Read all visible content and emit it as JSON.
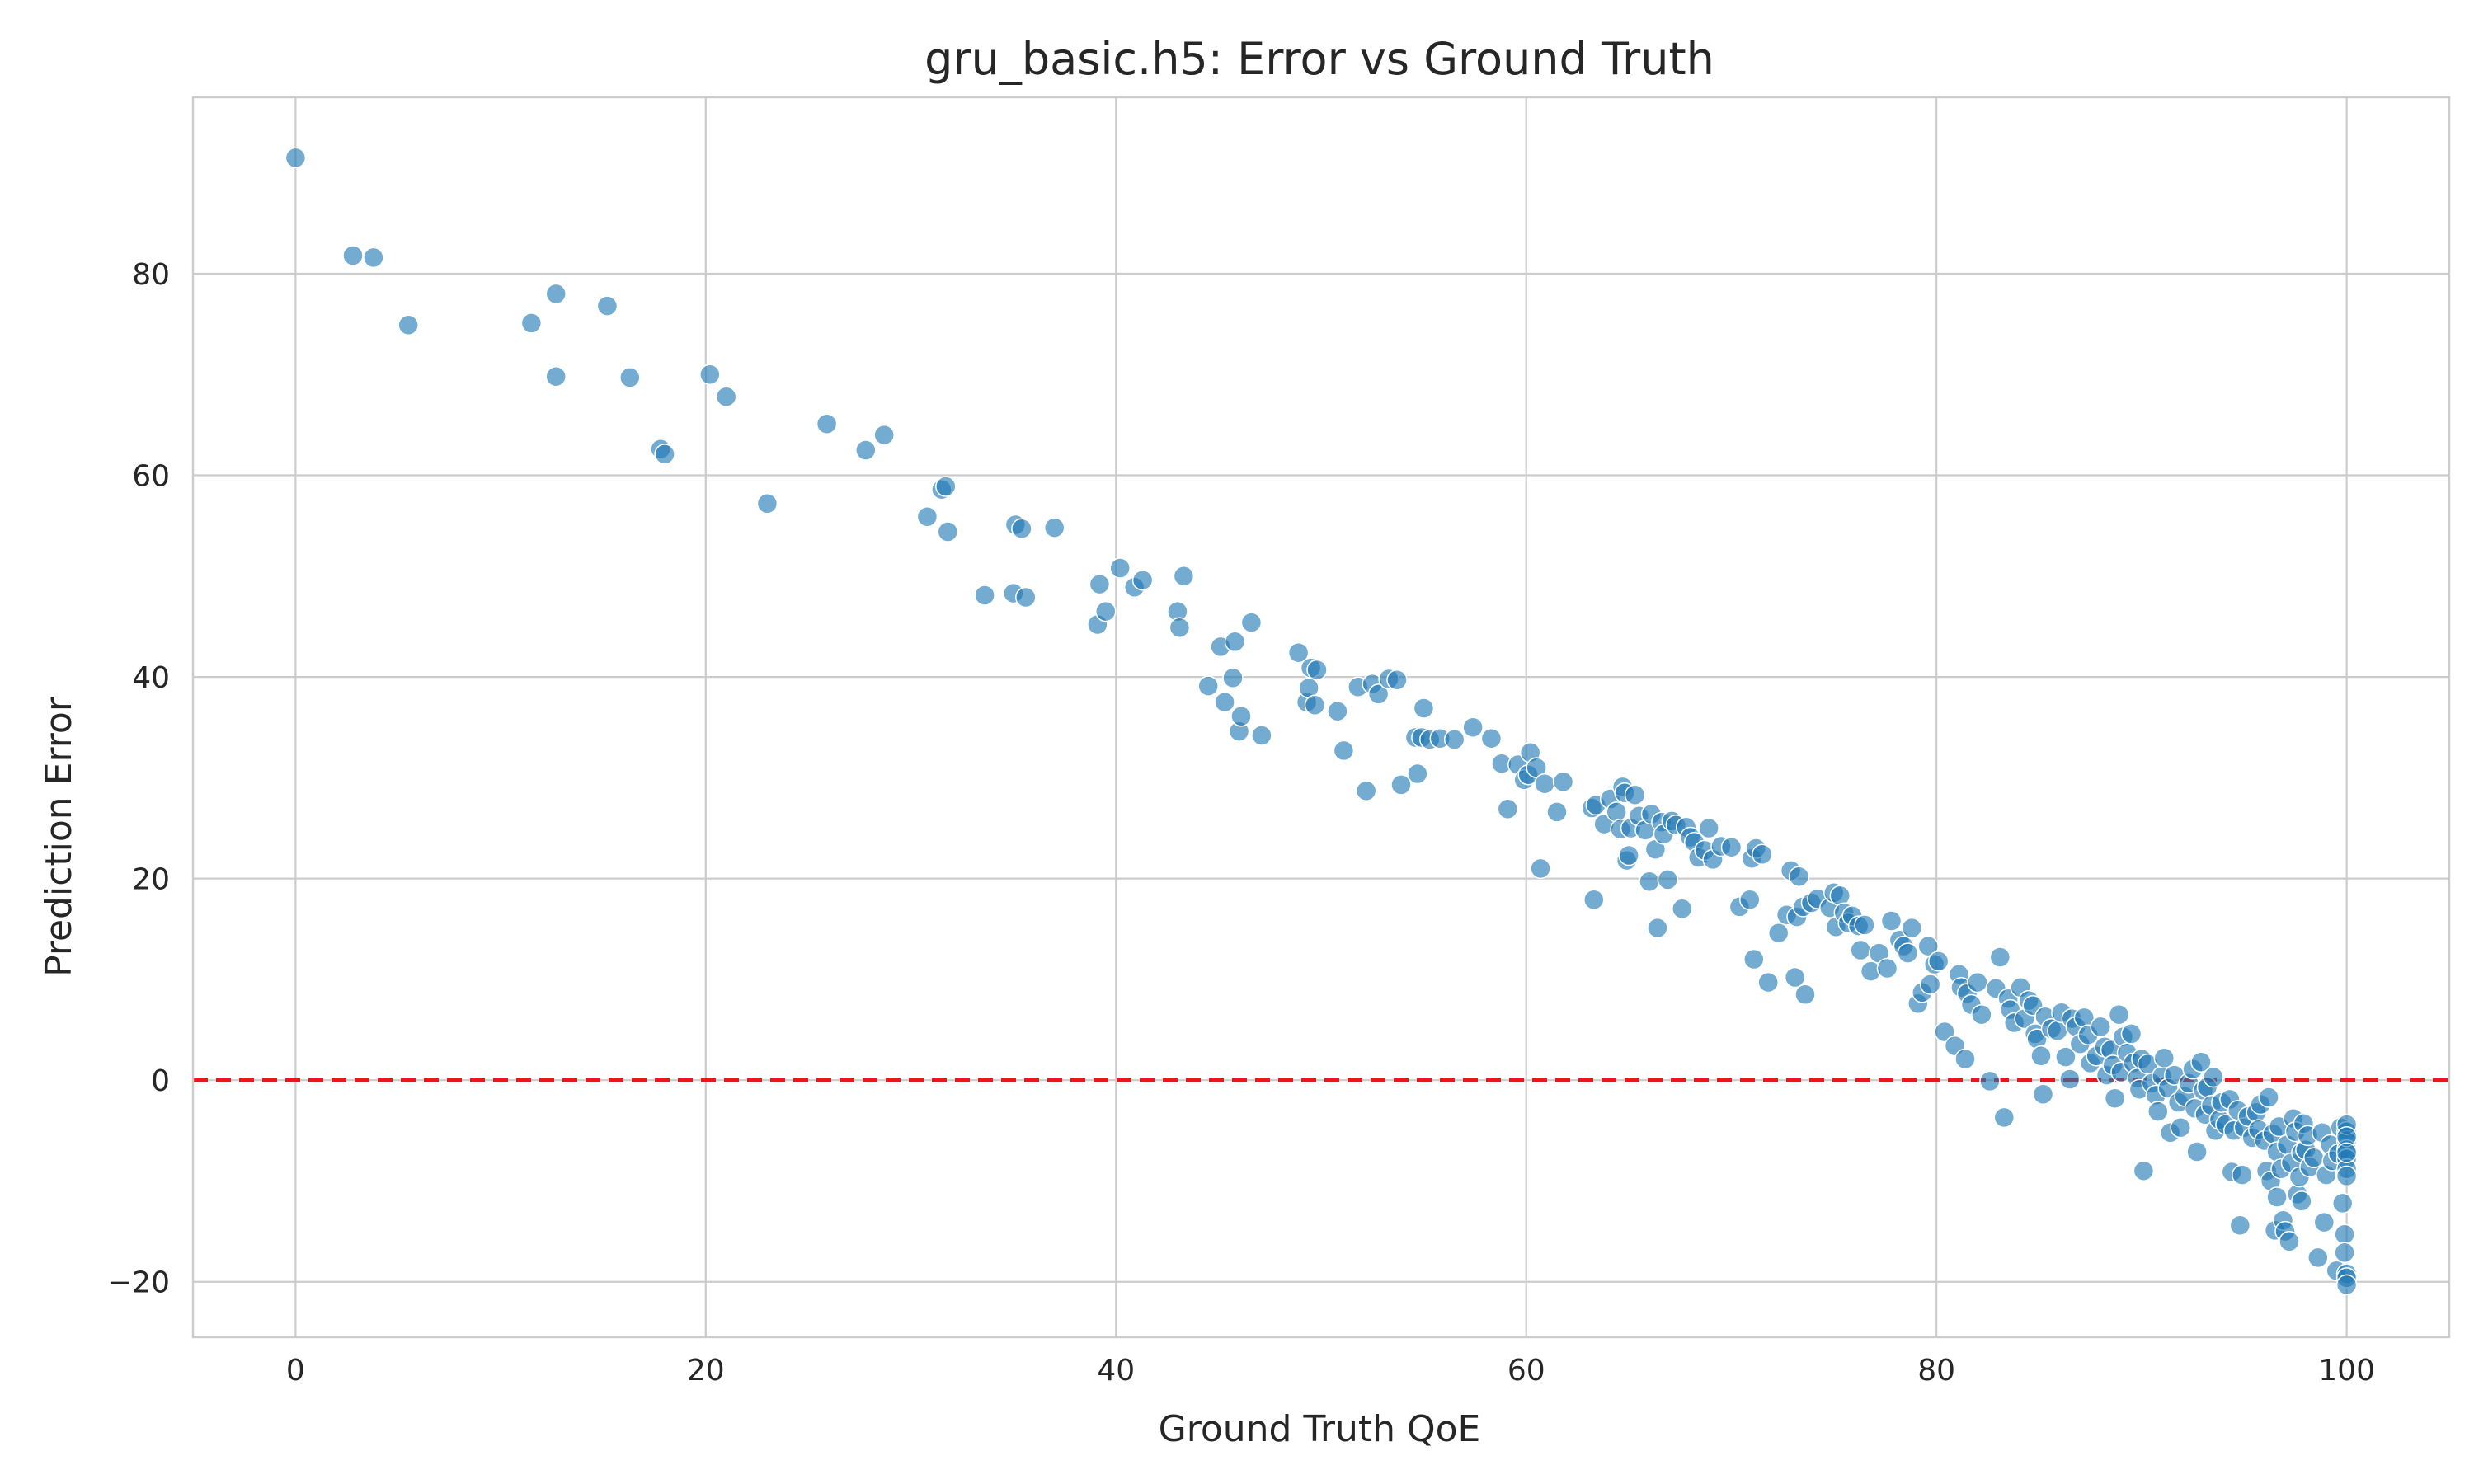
{
  "chart_data": {
    "type": "scatter",
    "title": "gru_basic.h5: Error vs Ground Truth",
    "xlabel": "Ground Truth QoE",
    "ylabel": "Prediction Error",
    "xlim": [
      -5,
      105
    ],
    "ylim": [
      -25.5,
      97.5
    ],
    "xticks": [
      0,
      20,
      40,
      60,
      80,
      100
    ],
    "xtick_labels": [
      "0",
      "20",
      "40",
      "60",
      "80",
      "100"
    ],
    "yticks": [
      -20,
      0,
      20,
      40,
      60,
      80
    ],
    "ytick_labels": [
      "−20",
      "0",
      "20",
      "40",
      "60",
      "80"
    ],
    "grid": true,
    "reference_line": {
      "y": 0,
      "color": "#e8181a",
      "style": "dashed"
    },
    "point_color": "#1f77b4",
    "points": [
      [
        0.0,
        91.5
      ],
      [
        2.8,
        81.8
      ],
      [
        3.8,
        81.6
      ],
      [
        5.5,
        74.9
      ],
      [
        11.5,
        75.1
      ],
      [
        12.7,
        78.0
      ],
      [
        12.7,
        69.8
      ],
      [
        15.2,
        76.8
      ],
      [
        16.3,
        69.7
      ],
      [
        17.8,
        62.6
      ],
      [
        18.0,
        62.1
      ],
      [
        20.2,
        70.0
      ],
      [
        21.0,
        67.8
      ],
      [
        23.0,
        57.2
      ],
      [
        25.9,
        65.1
      ],
      [
        27.8,
        62.5
      ],
      [
        28.7,
        64.0
      ],
      [
        30.8,
        55.9
      ],
      [
        31.5,
        58.6
      ],
      [
        31.7,
        58.9
      ],
      [
        31.8,
        54.4
      ],
      [
        33.6,
        48.1
      ],
      [
        35.0,
        48.3
      ],
      [
        35.1,
        55.1
      ],
      [
        35.4,
        54.7
      ],
      [
        35.6,
        47.9
      ],
      [
        37.0,
        54.8
      ],
      [
        39.1,
        45.2
      ],
      [
        39.2,
        49.2
      ],
      [
        39.5,
        46.5
      ],
      [
        40.2,
        50.8
      ],
      [
        40.9,
        48.9
      ],
      [
        41.3,
        49.6
      ],
      [
        43.0,
        46.5
      ],
      [
        43.1,
        44.9
      ],
      [
        43.3,
        50.0
      ],
      [
        44.5,
        39.1
      ],
      [
        45.1,
        43.0
      ],
      [
        45.3,
        37.5
      ],
      [
        45.7,
        39.9
      ],
      [
        45.8,
        43.5
      ],
      [
        46.0,
        34.6
      ],
      [
        46.1,
        36.1
      ],
      [
        46.6,
        45.4
      ],
      [
        47.1,
        34.2
      ],
      [
        48.9,
        42.4
      ],
      [
        49.3,
        37.5
      ],
      [
        49.4,
        38.9
      ],
      [
        49.5,
        40.9
      ],
      [
        49.7,
        37.2
      ],
      [
        49.8,
        40.7
      ],
      [
        50.8,
        36.6
      ],
      [
        51.1,
        32.7
      ],
      [
        51.8,
        39.0
      ],
      [
        52.2,
        28.7
      ],
      [
        52.5,
        39.3
      ],
      [
        52.8,
        38.3
      ],
      [
        53.3,
        39.8
      ],
      [
        53.7,
        39.7
      ],
      [
        53.9,
        29.3
      ],
      [
        54.6,
        34.0
      ],
      [
        54.7,
        30.4
      ],
      [
        54.9,
        34.0
      ],
      [
        55.0,
        36.9
      ],
      [
        55.3,
        33.8
      ],
      [
        55.8,
        33.9
      ],
      [
        56.5,
        33.8
      ],
      [
        57.4,
        35.0
      ],
      [
        58.3,
        33.9
      ],
      [
        58.8,
        31.4
      ],
      [
        59.1,
        26.9
      ],
      [
        59.6,
        31.3
      ],
      [
        59.9,
        29.8
      ],
      [
        60.1,
        30.3
      ],
      [
        60.2,
        32.5
      ],
      [
        60.5,
        31.0
      ],
      [
        60.7,
        21.0
      ],
      [
        60.9,
        29.4
      ],
      [
        61.5,
        26.6
      ],
      [
        61.8,
        29.6
      ],
      [
        63.2,
        27.0
      ],
      [
        63.3,
        17.9
      ],
      [
        63.4,
        27.3
      ],
      [
        63.8,
        25.4
      ],
      [
        64.1,
        27.9
      ],
      [
        64.4,
        26.6
      ],
      [
        64.6,
        24.9
      ],
      [
        64.7,
        29.1
      ],
      [
        64.8,
        28.5
      ],
      [
        64.9,
        21.8
      ],
      [
        65.0,
        22.3
      ],
      [
        65.1,
        25.0
      ],
      [
        65.3,
        28.3
      ],
      [
        65.5,
        26.2
      ],
      [
        65.8,
        24.8
      ],
      [
        66.0,
        19.7
      ],
      [
        66.1,
        26.4
      ],
      [
        66.3,
        22.9
      ],
      [
        66.4,
        15.1
      ],
      [
        66.6,
        25.6
      ],
      [
        66.7,
        24.4
      ],
      [
        66.9,
        19.9
      ],
      [
        67.1,
        25.7
      ],
      [
        67.3,
        25.3
      ],
      [
        67.6,
        17.0
      ],
      [
        67.8,
        25.1
      ],
      [
        68.0,
        24.1
      ],
      [
        68.2,
        23.6
      ],
      [
        68.4,
        22.1
      ],
      [
        68.7,
        22.8
      ],
      [
        68.9,
        25.0
      ],
      [
        69.1,
        21.9
      ],
      [
        69.5,
        23.2
      ],
      [
        70.0,
        23.1
      ],
      [
        70.4,
        17.2
      ],
      [
        70.9,
        17.9
      ],
      [
        71.0,
        22.0
      ],
      [
        71.1,
        12.0
      ],
      [
        71.2,
        23.0
      ],
      [
        71.5,
        22.4
      ],
      [
        71.8,
        9.7
      ],
      [
        72.3,
        14.6
      ],
      [
        72.7,
        16.4
      ],
      [
        72.9,
        20.8
      ],
      [
        73.1,
        10.2
      ],
      [
        73.2,
        16.2
      ],
      [
        73.3,
        20.2
      ],
      [
        73.5,
        17.2
      ],
      [
        73.6,
        8.5
      ],
      [
        73.9,
        17.6
      ],
      [
        74.2,
        18.0
      ],
      [
        74.8,
        17.1
      ],
      [
        75.0,
        18.6
      ],
      [
        75.1,
        15.2
      ],
      [
        75.3,
        18.3
      ],
      [
        75.5,
        16.6
      ],
      [
        75.7,
        15.6
      ],
      [
        75.9,
        16.3
      ],
      [
        76.2,
        15.3
      ],
      [
        76.3,
        12.9
      ],
      [
        76.5,
        15.4
      ],
      [
        76.8,
        10.8
      ],
      [
        77.2,
        12.6
      ],
      [
        77.6,
        11.1
      ],
      [
        77.8,
        15.8
      ],
      [
        78.2,
        13.9
      ],
      [
        78.4,
        13.3
      ],
      [
        78.6,
        12.6
      ],
      [
        78.8,
        15.1
      ],
      [
        79.1,
        7.6
      ],
      [
        79.3,
        8.7
      ],
      [
        79.6,
        13.3
      ],
      [
        79.7,
        9.5
      ],
      [
        79.9,
        11.5
      ],
      [
        80.1,
        11.8
      ],
      [
        80.4,
        4.8
      ],
      [
        80.9,
        3.4
      ],
      [
        81.1,
        10.5
      ],
      [
        81.2,
        9.2
      ],
      [
        81.4,
        2.1
      ],
      [
        81.5,
        8.6
      ],
      [
        81.7,
        7.5
      ],
      [
        82.0,
        9.7
      ],
      [
        82.2,
        6.5
      ],
      [
        82.6,
        -0.1
      ],
      [
        82.9,
        9.1
      ],
      [
        83.1,
        12.2
      ],
      [
        83.3,
        -3.7
      ],
      [
        83.5,
        8.1
      ],
      [
        83.6,
        7.0
      ],
      [
        83.8,
        5.7
      ],
      [
        84.1,
        9.2
      ],
      [
        84.3,
        6.1
      ],
      [
        84.5,
        7.9
      ],
      [
        84.7,
        7.4
      ],
      [
        84.8,
        4.6
      ],
      [
        84.9,
        4.1
      ],
      [
        85.1,
        2.4
      ],
      [
        85.2,
        -1.4
      ],
      [
        85.3,
        6.3
      ],
      [
        85.6,
        5.1
      ],
      [
        85.9,
        4.9
      ],
      [
        86.1,
        6.7
      ],
      [
        86.3,
        2.3
      ],
      [
        86.5,
        0.1
      ],
      [
        86.6,
        6.1
      ],
      [
        86.8,
        5.3
      ],
      [
        87.0,
        3.6
      ],
      [
        87.2,
        6.2
      ],
      [
        87.4,
        4.5
      ],
      [
        87.5,
        1.7
      ],
      [
        87.8,
        2.4
      ],
      [
        88.0,
        5.3
      ],
      [
        88.2,
        3.3
      ],
      [
        88.3,
        0.5
      ],
      [
        88.5,
        3.0
      ],
      [
        88.6,
        1.5
      ],
      [
        88.7,
        -1.8
      ],
      [
        88.9,
        6.5
      ],
      [
        89.0,
        0.8
      ],
      [
        89.1,
        4.3
      ],
      [
        89.3,
        2.7
      ],
      [
        89.5,
        4.6
      ],
      [
        89.6,
        1.7
      ],
      [
        89.8,
        0.2
      ],
      [
        89.9,
        -0.9
      ],
      [
        90.0,
        2.1
      ],
      [
        90.1,
        -9.0
      ],
      [
        90.3,
        1.6
      ],
      [
        90.5,
        -0.3
      ],
      [
        90.7,
        -1.5
      ],
      [
        90.8,
        -3.1
      ],
      [
        91.0,
        0.4
      ],
      [
        91.1,
        2.2
      ],
      [
        91.3,
        -0.8
      ],
      [
        91.4,
        -5.2
      ],
      [
        91.6,
        0.5
      ],
      [
        91.8,
        -2.2
      ],
      [
        91.9,
        -4.7
      ],
      [
        92.1,
        -1.6
      ],
      [
        92.3,
        -0.3
      ],
      [
        92.5,
        1.1
      ],
      [
        92.6,
        -2.8
      ],
      [
        92.7,
        -7.1
      ],
      [
        92.9,
        1.8
      ],
      [
        93.0,
        -1.0
      ],
      [
        93.1,
        -3.4
      ],
      [
        93.2,
        -0.7
      ],
      [
        93.4,
        -2.5
      ],
      [
        93.5,
        0.3
      ],
      [
        93.6,
        -5.0
      ],
      [
        93.8,
        -3.9
      ],
      [
        93.9,
        -2.2
      ],
      [
        94.1,
        -4.4
      ],
      [
        94.3,
        -1.9
      ],
      [
        94.4,
        -9.1
      ],
      [
        94.5,
        -5.0
      ],
      [
        94.7,
        -3.0
      ],
      [
        94.8,
        -14.4
      ],
      [
        94.9,
        -9.4
      ],
      [
        95.0,
        -4.7
      ],
      [
        95.2,
        -3.6
      ],
      [
        95.4,
        -5.7
      ],
      [
        95.6,
        -3.2
      ],
      [
        95.7,
        -4.9
      ],
      [
        95.8,
        -2.4
      ],
      [
        96.0,
        -6.0
      ],
      [
        96.1,
        -9.0
      ],
      [
        96.2,
        -1.7
      ],
      [
        96.3,
        -10.0
      ],
      [
        96.4,
        -5.3
      ],
      [
        96.5,
        -14.9
      ],
      [
        96.6,
        -7.1
      ],
      [
        96.6,
        -11.6
      ],
      [
        96.7,
        -4.6
      ],
      [
        96.8,
        -8.8
      ],
      [
        96.9,
        -13.9
      ],
      [
        97.0,
        -15.0
      ],
      [
        97.1,
        -6.4
      ],
      [
        97.2,
        -16.0
      ],
      [
        97.3,
        -8.2
      ],
      [
        97.4,
        -3.8
      ],
      [
        97.5,
        -5.1
      ],
      [
        97.6,
        -11.3
      ],
      [
        97.7,
        -9.6
      ],
      [
        97.8,
        -7.2
      ],
      [
        97.8,
        -12.0
      ],
      [
        97.9,
        -4.3
      ],
      [
        98.0,
        -6.9
      ],
      [
        98.1,
        -5.5
      ],
      [
        98.2,
        -8.6
      ],
      [
        98.4,
        -7.7
      ],
      [
        98.6,
        -17.6
      ],
      [
        98.8,
        -5.2
      ],
      [
        98.9,
        -14.1
      ],
      [
        99.0,
        -9.4
      ],
      [
        99.2,
        -6.4
      ],
      [
        99.3,
        -8.0
      ],
      [
        99.5,
        -18.9
      ],
      [
        99.6,
        -7.3
      ],
      [
        99.7,
        -4.7
      ],
      [
        99.8,
        -12.2
      ],
      [
        99.9,
        -15.3
      ],
      [
        99.9,
        -17.1
      ],
      [
        100.0,
        -19.2
      ],
      [
        100.0,
        -19.6
      ],
      [
        100.0,
        -20.3
      ],
      [
        100.0,
        -5.1
      ],
      [
        100.0,
        -6.0
      ],
      [
        100.0,
        -6.9
      ],
      [
        100.0,
        -7.8
      ],
      [
        100.0,
        -8.8
      ],
      [
        100.0,
        -9.5
      ],
      [
        100.0,
        -4.4
      ],
      [
        100.0,
        -5.6
      ],
      [
        100.0,
        -7.2
      ]
    ]
  }
}
